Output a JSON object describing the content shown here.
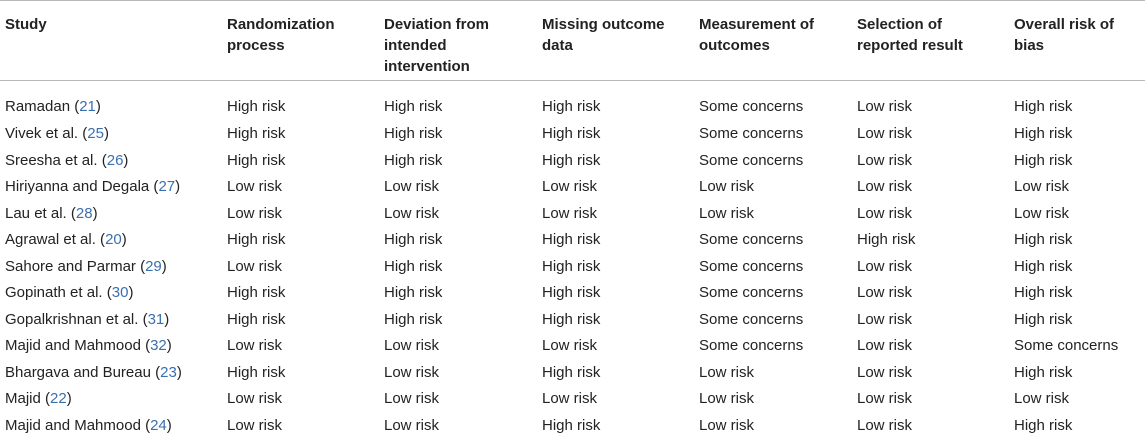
{
  "table": {
    "headers": [
      "Study",
      "Randomization process",
      "Deviation from intended intervention",
      "Missing outcome data",
      "Measurement of outcomes",
      "Selection of reported result",
      "Overall risk of bias"
    ],
    "rows": [
      {
        "study": "Ramadan",
        "ref": "21",
        "randomization": "High risk",
        "deviation": "High risk",
        "missing": "High risk",
        "measurement": "Some concerns",
        "selection": "Low risk",
        "overall": "High risk"
      },
      {
        "study": "Vivek et al.",
        "ref": "25",
        "randomization": "High risk",
        "deviation": "High risk",
        "missing": "High risk",
        "measurement": "Some concerns",
        "selection": "Low risk",
        "overall": "High risk"
      },
      {
        "study": "Sreesha et al.",
        "ref": "26",
        "randomization": "High risk",
        "deviation": "High risk",
        "missing": "High risk",
        "measurement": "Some concerns",
        "selection": "Low risk",
        "overall": "High risk"
      },
      {
        "study": "Hiriyanna and Degala",
        "ref": "27",
        "randomization": "Low risk",
        "deviation": "Low risk",
        "missing": "Low risk",
        "measurement": "Low risk",
        "selection": "Low risk",
        "overall": "Low risk"
      },
      {
        "study": "Lau et al.",
        "ref": "28",
        "randomization": "Low risk",
        "deviation": "Low risk",
        "missing": "Low risk",
        "measurement": "Low risk",
        "selection": "Low risk",
        "overall": "Low risk"
      },
      {
        "study": "Agrawal et al.",
        "ref": "20",
        "randomization": "High risk",
        "deviation": "High risk",
        "missing": "High risk",
        "measurement": "Some concerns",
        "selection": "High risk",
        "overall": "High risk"
      },
      {
        "study": "Sahore and Parmar",
        "ref": "29",
        "randomization": "Low risk",
        "deviation": "High risk",
        "missing": "High risk",
        "measurement": "Some concerns",
        "selection": "Low risk",
        "overall": "High risk"
      },
      {
        "study": "Gopinath et al.",
        "ref": "30",
        "randomization": "High risk",
        "deviation": "High risk",
        "missing": "High risk",
        "measurement": "Some concerns",
        "selection": "Low risk",
        "overall": "High risk"
      },
      {
        "study": "Gopalkrishnan et al.",
        "ref": "31",
        "randomization": "High risk",
        "deviation": "High risk",
        "missing": "High risk",
        "measurement": "Some concerns",
        "selection": "Low risk",
        "overall": "High risk"
      },
      {
        "study": "Majid and Mahmood",
        "ref": "32",
        "randomization": "Low risk",
        "deviation": "Low risk",
        "missing": "Low risk",
        "measurement": "Some concerns",
        "selection": "Low risk",
        "overall": "Some concerns"
      },
      {
        "study": "Bhargava and Bureau",
        "ref": "23",
        "randomization": "High risk",
        "deviation": "Low risk",
        "missing": "High risk",
        "measurement": "Low risk",
        "selection": "Low risk",
        "overall": "High risk"
      },
      {
        "study": "Majid",
        "ref": "22",
        "randomization": "Low risk",
        "deviation": "Low risk",
        "missing": "Low risk",
        "measurement": "Low risk",
        "selection": "Low risk",
        "overall": "Low risk"
      },
      {
        "study": "Majid and Mahmood",
        "ref": "24",
        "randomization": "Low risk",
        "deviation": "Low risk",
        "missing": "High risk",
        "measurement": "Low risk",
        "selection": "Low risk",
        "overall": "High risk"
      }
    ],
    "colors": {
      "text": "#222222",
      "reference_link": "#3a6fb0",
      "rule": "#b8b8b8"
    }
  }
}
